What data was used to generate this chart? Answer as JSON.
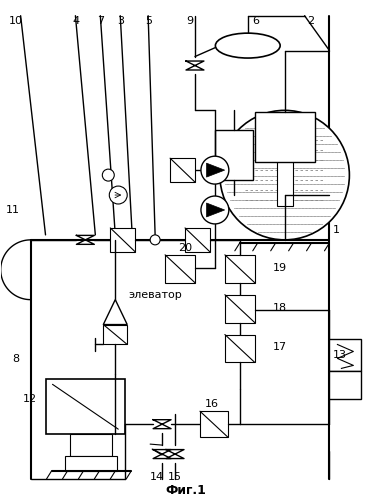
{
  "title": "Фиг.1",
  "bg_color": "#ffffff",
  "line_color": "#000000",
  "fig_w": 3.73,
  "fig_h": 5.0,
  "dpi": 100
}
